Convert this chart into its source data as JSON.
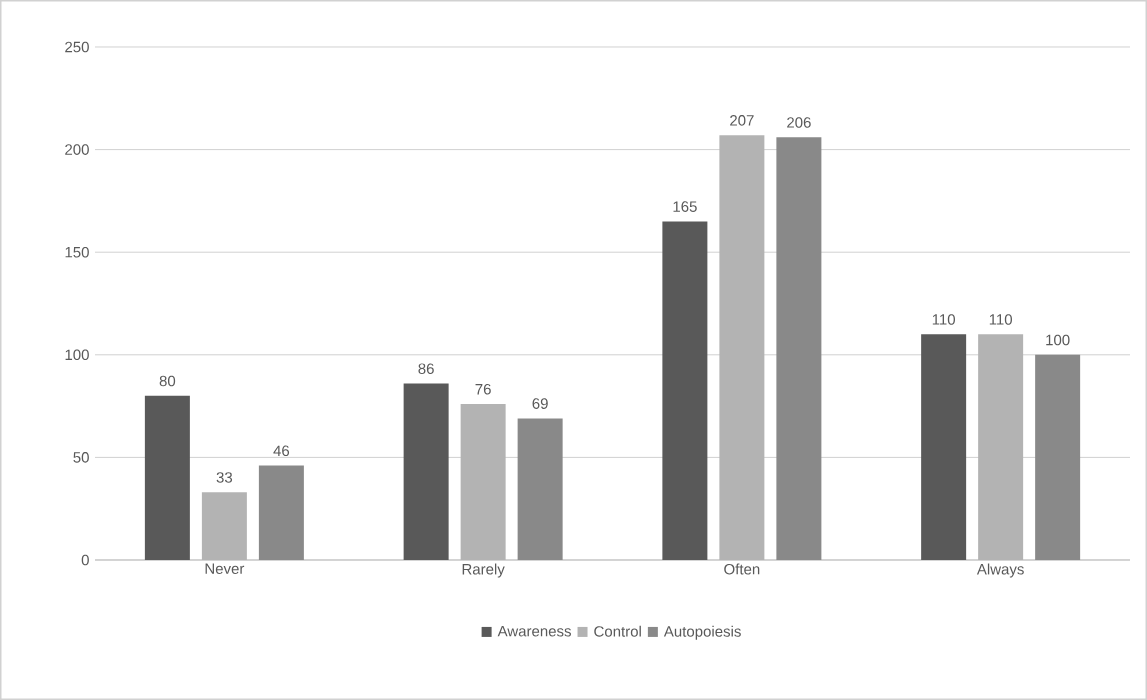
{
  "chart_data": {
    "type": "bar",
    "categories": [
      "Never",
      "Rarely",
      "Often",
      "Always"
    ],
    "series": [
      {
        "name": "Awareness",
        "color": "#595959",
        "values": [
          80,
          86,
          165,
          110
        ]
      },
      {
        "name": "Control",
        "color": "#b3b3b3",
        "values": [
          33,
          76,
          207,
          110
        ]
      },
      {
        "name": "Autopoiesis",
        "color": "#898989",
        "values": [
          46,
          69,
          206,
          100
        ]
      }
    ],
    "ylim": [
      0,
      250
    ],
    "yticks": [
      0,
      50,
      100,
      150,
      200,
      250
    ],
    "grid": "y",
    "legend": "bottom",
    "data_labels": true
  }
}
